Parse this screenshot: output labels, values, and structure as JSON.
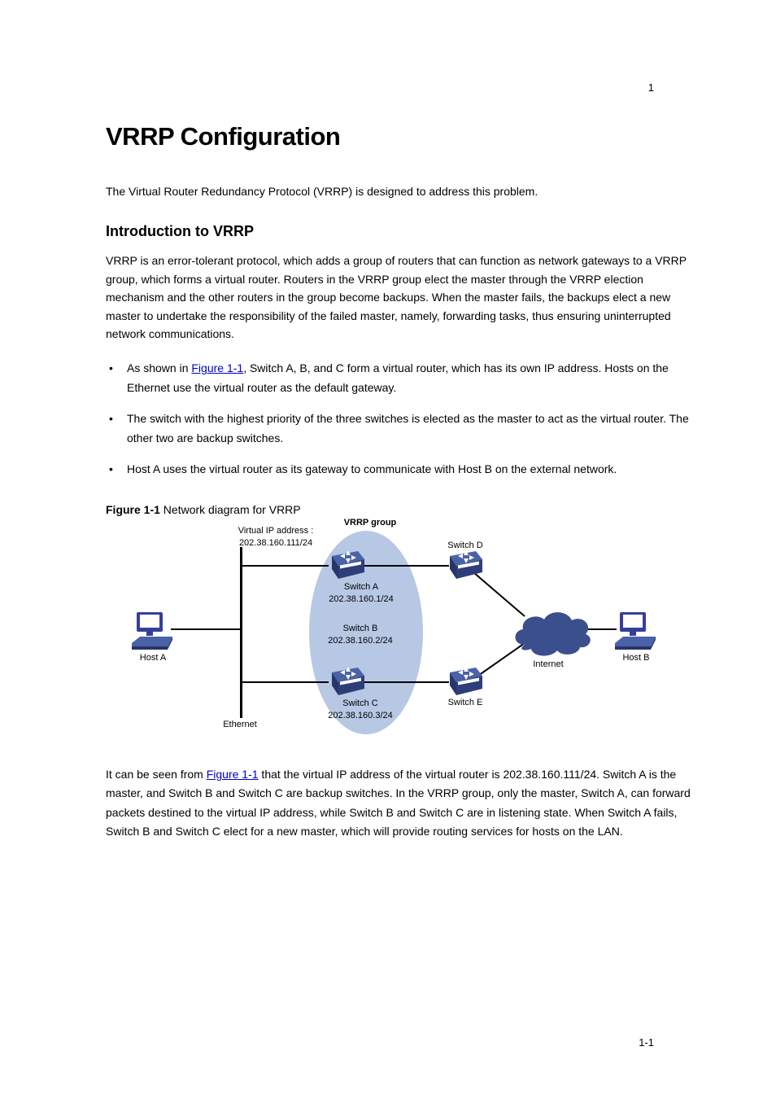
{
  "page_top_num": "1",
  "chapter_title": "VRRP Configuration",
  "intro_para": "The Virtual Router Redundancy Protocol (VRRP) is designed to address this problem.",
  "section_heading": "Introduction to VRRP",
  "intro_sub_para": "VRRP is an error-tolerant protocol, which adds a group of routers that can function as network gateways to a VRRP group, which forms a virtual router. Routers in the VRRP group elect the master through the VRRP election mechanism and the other routers in the group become backups. When the master fails, the backups elect a new master to undertake the responsibility of the failed master, namely, forwarding tasks, thus ensuring uninterrupted network communications.",
  "bullets": [
    {
      "pre": "As shown in ",
      "link": "Figure 1-1",
      "post": ", Switch A, B, and C form a virtual router, which has its own IP address. Hosts on the Ethernet use the virtual router as the default gateway."
    },
    {
      "pre": "",
      "link": "",
      "post": "The switch with the highest priority of the three switches is elected as the master to act as the virtual router. The other two are backup switches."
    },
    {
      "pre": "",
      "link": "",
      "post": "Host A uses the virtual router as its gateway to communicate with Host B on the external network."
    }
  ],
  "figure_caption_prefix": "Figure 1-1",
  "figure_caption_text": "Network diagram for VRRP",
  "diagram": {
    "bg_ellipse_color": "#b7c8e4",
    "cloud_fill": "#3a4f8b",
    "switch_top_fill": "#4a62a8",
    "switch_side_fill": "#27356b",
    "switch_front_fill": "#2d3e7a",
    "switch_band_fill": "#ffffff",
    "monitor_fill": "#353f99",
    "monitor_screen": "#ffffff",
    "labels": {
      "hostA": "Host A",
      "vrrpgroup": "VRRP group",
      "virtualIP": "Virtual IP address :\n202.38.160.111/24",
      "switchA": "Switch A",
      "switchA_ip": "202.38.160.1/24",
      "switchD": "Switch D",
      "internet": "Internet",
      "hostB": "Host B",
      "switchB": "Switch B",
      "switchB_ip": "202.38.160.2/24",
      "switchC": "Switch C",
      "switchC_ip": "202.38.160.3/24",
      "switchE": "Switch E",
      "ethernet": "Ethernet"
    }
  },
  "footnote": {
    "pre": "It can be seen from ",
    "link": "Figure 1-1",
    "post": " that the virtual IP address of the virtual router is 202.38.160.111/24. Switch A is the master, and Switch B and Switch C are backup switches. In the VRRP group, only the master, Switch A, can forward packets destined to the virtual IP address, while Switch B and Switch C are in listening state. When Switch A fails, Switch B and Switch C elect for a new master, which will provide routing services for hosts on the LAN."
  },
  "page_bottom_num": "1-1",
  "colors": {
    "link": "#0000cc"
  },
  "fonts": {
    "body_size": 14,
    "h1_size": 31,
    "h2_size": 18,
    "label_size": 11
  }
}
